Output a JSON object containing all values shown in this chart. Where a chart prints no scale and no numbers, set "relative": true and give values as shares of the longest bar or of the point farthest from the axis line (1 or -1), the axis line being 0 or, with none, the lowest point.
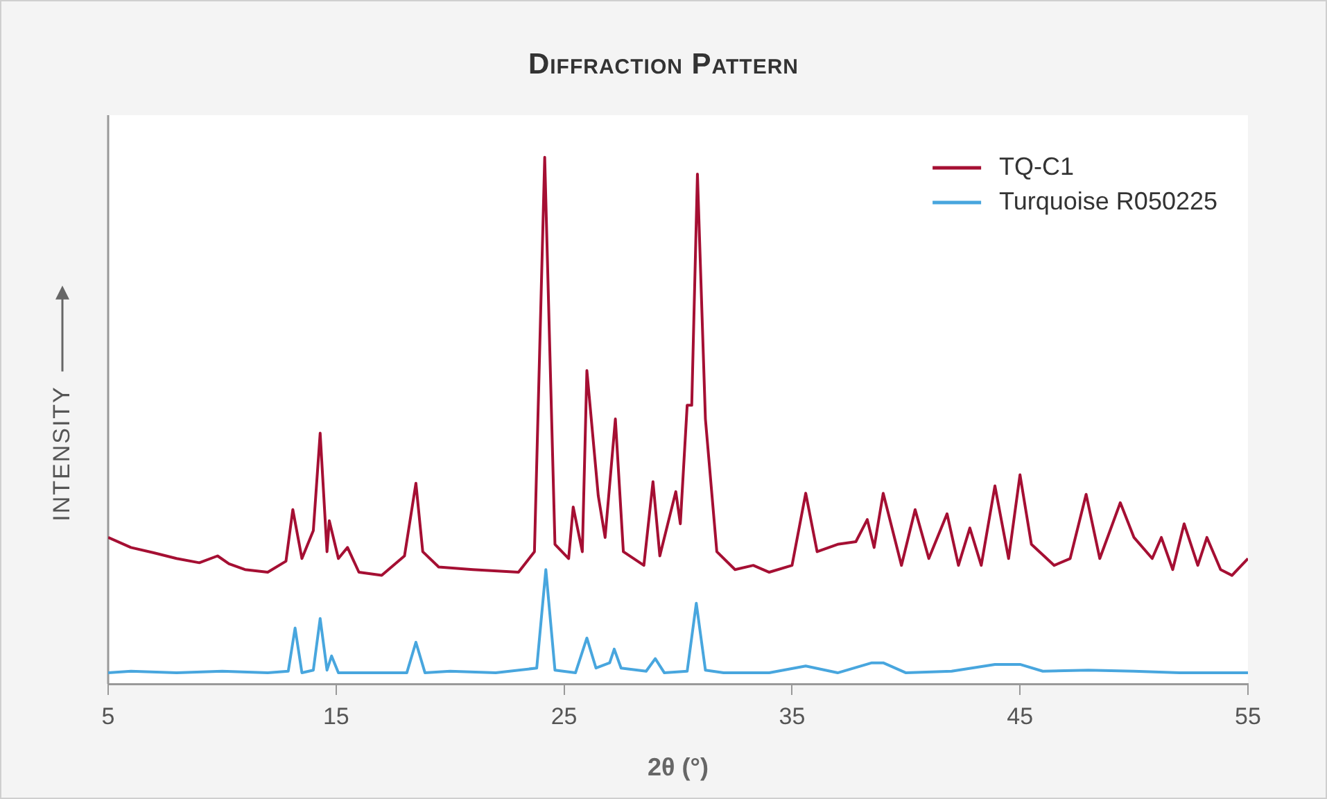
{
  "chart_data": {
    "type": "line",
    "title": "Diffraction Pattern",
    "xlabel": "2θ (°)",
    "ylabel": "INTENSITY",
    "relative": true,
    "xlim": [
      5,
      55
    ],
    "xticks": [
      5,
      15,
      25,
      35,
      45,
      55
    ],
    "grid": false,
    "legend": "top right",
    "marker": "none",
    "line_style": "solid",
    "series": [
      {
        "name": "TQ-C1",
        "color": "#a50f33",
        "x": [
          5,
          6,
          7,
          8,
          9,
          9.8,
          10.3,
          11,
          12,
          12.8,
          13.1,
          13.5,
          14,
          14.3,
          14.6,
          14.7,
          15.1,
          15.5,
          16,
          17,
          18,
          18.5,
          18.8,
          19.5,
          21,
          23,
          23.7,
          24.15,
          24.6,
          25.2,
          25.4,
          25.8,
          26,
          26.5,
          26.8,
          27.25,
          27.6,
          28.5,
          28.9,
          29.2,
          29.9,
          30.1,
          30.4,
          30.6,
          30.85,
          31.2,
          31.7,
          32.5,
          33.3,
          34,
          35,
          35.6,
          36.1,
          37,
          37.8,
          38.3,
          38.6,
          39,
          39.8,
          40.4,
          41,
          41.8,
          42.3,
          42.8,
          43.3,
          43.9,
          44.5,
          45,
          45.5,
          46.5,
          47.2,
          47.9,
          48.5,
          49.4,
          50,
          50.8,
          51.2,
          51.7,
          52.2,
          52.8,
          53.2,
          53.8,
          54.3,
          55
        ],
        "values": [
          0.278,
          0.259,
          0.249,
          0.238,
          0.23,
          0.243,
          0.228,
          0.217,
          0.212,
          0.233,
          0.331,
          0.238,
          0.291,
          0.476,
          0.251,
          0.31,
          0.238,
          0.259,
          0.212,
          0.206,
          0.243,
          0.381,
          0.251,
          0.222,
          0.217,
          0.212,
          0.251,
          1.0,
          0.265,
          0.238,
          0.336,
          0.251,
          0.595,
          0.357,
          0.278,
          0.503,
          0.251,
          0.225,
          0.384,
          0.243,
          0.365,
          0.304,
          0.529,
          0.529,
          0.968,
          0.503,
          0.251,
          0.217,
          0.225,
          0.212,
          0.225,
          0.362,
          0.251,
          0.265,
          0.27,
          0.312,
          0.259,
          0.362,
          0.225,
          0.331,
          0.238,
          0.323,
          0.225,
          0.296,
          0.225,
          0.376,
          0.238,
          0.397,
          0.265,
          0.225,
          0.238,
          0.36,
          0.238,
          0.344,
          0.278,
          0.238,
          0.278,
          0.217,
          0.304,
          0.225,
          0.278,
          0.217,
          0.206,
          0.238
        ]
      },
      {
        "name": "Turquoise R050225",
        "color": "#48a6de",
        "x": [
          5,
          6,
          8,
          10,
          12,
          12.9,
          13.2,
          13.5,
          14,
          14.3,
          14.6,
          14.8,
          15.1,
          16,
          18.1,
          18.5,
          18.9,
          20,
          22,
          23.8,
          24.2,
          24.6,
          25.5,
          26,
          26.4,
          27,
          27.2,
          27.5,
          28.6,
          29,
          29.4,
          30.4,
          30.8,
          31.2,
          32,
          34,
          35.6,
          37,
          38.5,
          39,
          40,
          42,
          43.9,
          45,
          46,
          48,
          50,
          52,
          55
        ],
        "values": [
          0.021,
          0.024,
          0.021,
          0.024,
          0.021,
          0.024,
          0.106,
          0.021,
          0.026,
          0.124,
          0.026,
          0.053,
          0.021,
          0.021,
          0.021,
          0.079,
          0.021,
          0.024,
          0.021,
          0.03,
          0.217,
          0.026,
          0.021,
          0.087,
          0.03,
          0.04,
          0.066,
          0.03,
          0.024,
          0.048,
          0.021,
          0.024,
          0.153,
          0.026,
          0.021,
          0.021,
          0.034,
          0.021,
          0.04,
          0.04,
          0.021,
          0.024,
          0.037,
          0.037,
          0.024,
          0.026,
          0.024,
          0.021,
          0.021
        ]
      }
    ]
  }
}
